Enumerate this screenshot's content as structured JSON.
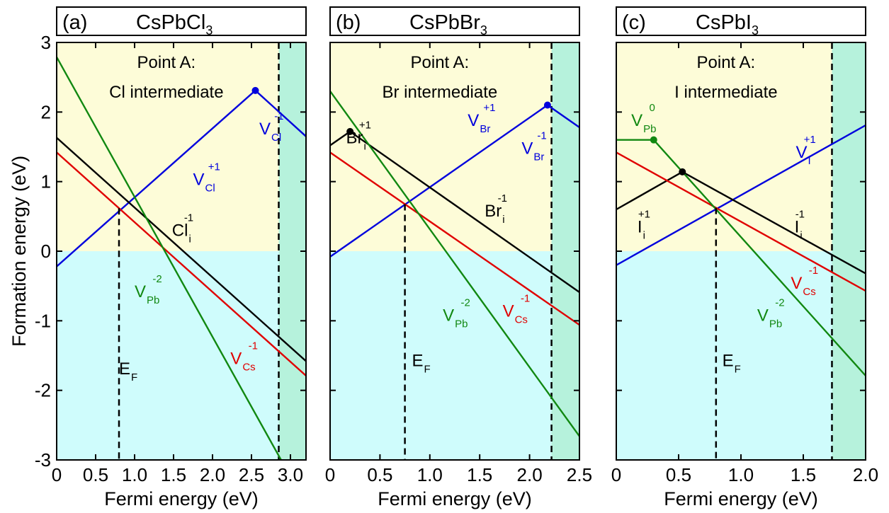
{
  "figure": {
    "ylabel": "Formation energy (eV)",
    "xlabel": "Fermi energy (eV)"
  },
  "chart_data": [
    {
      "type": "line",
      "panel": "(a)",
      "title": "CsPbCl3",
      "title_parts": [
        "CsPbCl",
        "3"
      ],
      "xlim": [
        0,
        3.2
      ],
      "ylim": [
        -3,
        3
      ],
      "xticks": [
        "0",
        "0.5",
        "1.0",
        "1.5",
        "2.0",
        "2.5",
        "3.0"
      ],
      "xtick_values": [
        0,
        0.5,
        1.0,
        1.5,
        2.0,
        2.5,
        3.0
      ],
      "yticks": [
        "3",
        "2",
        "1",
        "0",
        "-1",
        "-2",
        "-3"
      ],
      "ytick_values": [
        3,
        2,
        1,
        0,
        -1,
        -2,
        -3
      ],
      "band_gap": 2.85,
      "fermi_level": 0.8,
      "region_note": [
        "Point A:",
        "Cl intermediate"
      ],
      "series": [
        {
          "color": "#0000dd",
          "points": [
            [
              0,
              -0.22
            ],
            [
              2.55,
              2.31
            ],
            [
              3.2,
              1.65
            ]
          ],
          "transitions": [
            [
              2.55,
              2.31
            ]
          ]
        },
        {
          "color": "#000000",
          "points": [
            [
              0,
              1.63
            ],
            [
              3.2,
              -1.58
            ]
          ],
          "transitions": []
        },
        {
          "color": "#e00000",
          "points": [
            [
              0,
              1.42
            ],
            [
              3.2,
              -1.79
            ]
          ],
          "transitions": []
        },
        {
          "color": "#118811",
          "points": [
            [
              0,
              2.79
            ],
            [
              2.88,
              -3.0
            ]
          ],
          "transitions": []
        }
      ],
      "labels": [
        {
          "text": "V",
          "sup": "+1",
          "sub": "Cl",
          "color": "#0000dd",
          "x": 1.75,
          "y": 0.95
        },
        {
          "text": "V",
          "sup": "-1",
          "sub": "Cl",
          "color": "#0000dd",
          "x": 2.6,
          "y": 1.68
        },
        {
          "text": "Cl",
          "sup": "-1",
          "sub": "i",
          "color": "#000000",
          "x": 1.48,
          "y": 0.22
        },
        {
          "text": "V",
          "sup": "-2",
          "sub": "Pb",
          "color": "#118811",
          "x": 1.0,
          "y": -0.66
        },
        {
          "text": "V",
          "sup": "-1",
          "sub": "Cs",
          "color": "#e00000",
          "x": 2.23,
          "y": -1.62
        },
        {
          "text": "E",
          "sup": "",
          "sub": "F",
          "color": "#000000",
          "x": 0.8,
          "y": -1.77
        }
      ]
    },
    {
      "type": "line",
      "panel": "(b)",
      "title": "CsPbBr3",
      "title_parts": [
        "CsPbBr",
        "3"
      ],
      "xlim": [
        0,
        2.5
      ],
      "ylim": [
        -3,
        3
      ],
      "xticks": [
        "0",
        "0.5",
        "1.0",
        "1.5",
        "2.0",
        "2.5"
      ],
      "xtick_values": [
        0,
        0.5,
        1.0,
        1.5,
        2.0,
        2.5
      ],
      "yticks": [],
      "ytick_values": [
        3,
        2,
        1,
        0,
        -1,
        -2,
        -3
      ],
      "band_gap": 2.22,
      "fermi_level": 0.75,
      "region_note": [
        "Point A:",
        "Br intermediate"
      ],
      "series": [
        {
          "color": "#0000dd",
          "points": [
            [
              0,
              -0.08
            ],
            [
              2.18,
              2.1
            ],
            [
              2.5,
              1.78
            ]
          ],
          "transitions": [
            [
              2.18,
              2.1
            ]
          ]
        },
        {
          "color": "#000000",
          "points": [
            [
              0,
              1.52
            ],
            [
              0.2,
              1.72
            ],
            [
              2.5,
              -0.59
            ]
          ],
          "transitions": [
            [
              0.2,
              1.72
            ]
          ]
        },
        {
          "color": "#e00000",
          "points": [
            [
              0,
              1.42
            ],
            [
              2.5,
              -1.06
            ]
          ],
          "transitions": []
        },
        {
          "color": "#118811",
          "points": [
            [
              0,
              2.3
            ],
            [
              2.5,
              -2.66
            ]
          ],
          "transitions": []
        }
      ],
      "labels": [
        {
          "text": "Br",
          "sup": "+1",
          "sub": "i",
          "color": "#000000",
          "x": 0.16,
          "y": 1.55
        },
        {
          "text": "V",
          "sup": "+1",
          "sub": "Br",
          "color": "#0000dd",
          "x": 1.38,
          "y": 1.8
        },
        {
          "text": "V",
          "sup": "-1",
          "sub": "Br",
          "color": "#0000dd",
          "x": 1.92,
          "y": 1.4
        },
        {
          "text": "Br",
          "sup": "-1",
          "sub": "i",
          "color": "#000000",
          "x": 1.55,
          "y": 0.5
        },
        {
          "text": "V",
          "sup": "-2",
          "sub": "Pb",
          "color": "#118811",
          "x": 1.13,
          "y": -1.0
        },
        {
          "text": "V",
          "sup": "-1",
          "sub": "Cs",
          "color": "#e00000",
          "x": 1.73,
          "y": -0.94
        },
        {
          "text": "E",
          "sup": "",
          "sub": "F",
          "color": "#000000",
          "x": 0.82,
          "y": -1.65
        }
      ]
    },
    {
      "type": "line",
      "panel": "(c)",
      "title": "CsPbI3",
      "title_parts": [
        "CsPbI",
        "3"
      ],
      "xlim": [
        0,
        2.0
      ],
      "ylim": [
        -3,
        3
      ],
      "xticks": [
        "0",
        "0.5",
        "1.0",
        "1.5",
        "2.0"
      ],
      "xtick_values": [
        0,
        0.5,
        1.0,
        1.5,
        2.0
      ],
      "yticks": [],
      "ytick_values": [
        3,
        2,
        1,
        0,
        -1,
        -2,
        -3
      ],
      "band_gap": 1.73,
      "fermi_level": 0.8,
      "region_note": [
        "Point A:",
        "I intermediate"
      ],
      "series": [
        {
          "color": "#0000dd",
          "points": [
            [
              0,
              -0.2
            ],
            [
              2.0,
              1.81
            ]
          ],
          "transitions": []
        },
        {
          "color": "#000000",
          "points": [
            [
              0,
              0.6
            ],
            [
              0.53,
              1.14
            ],
            [
              2.0,
              -0.32
            ]
          ],
          "transitions": [
            [
              0.53,
              1.14
            ]
          ]
        },
        {
          "color": "#e00000",
          "points": [
            [
              0,
              1.42
            ],
            [
              2.0,
              -0.57
            ]
          ],
          "transitions": []
        },
        {
          "color": "#118811",
          "points": [
            [
              0,
              1.6
            ],
            [
              0.3,
              1.6
            ],
            [
              2.0,
              -1.79
            ]
          ],
          "transitions": [
            [
              0.3,
              1.6
            ]
          ]
        }
      ],
      "labels": [
        {
          "text": "V",
          "sup": "0",
          "sub": "Pb",
          "color": "#118811",
          "x": 0.12,
          "y": 1.8
        },
        {
          "text": "V",
          "sup": "+1",
          "sub": "I",
          "color": "#0000dd",
          "x": 1.44,
          "y": 1.34
        },
        {
          "text": "I",
          "sup": "+1",
          "sub": "i",
          "color": "#000000",
          "x": 0.17,
          "y": 0.27
        },
        {
          "text": "I",
          "sup": "-1",
          "sub": "i",
          "color": "#000000",
          "x": 1.43,
          "y": 0.27
        },
        {
          "text": "V",
          "sup": "-1",
          "sub": "Cs",
          "color": "#e00000",
          "x": 1.4,
          "y": -0.54
        },
        {
          "text": "V",
          "sup": "-2",
          "sub": "Pb",
          "color": "#118811",
          "x": 1.13,
          "y": -1.0
        },
        {
          "text": "E",
          "sup": "",
          "sub": "F",
          "color": "#000000",
          "x": 0.85,
          "y": -1.65
        }
      ]
    }
  ]
}
